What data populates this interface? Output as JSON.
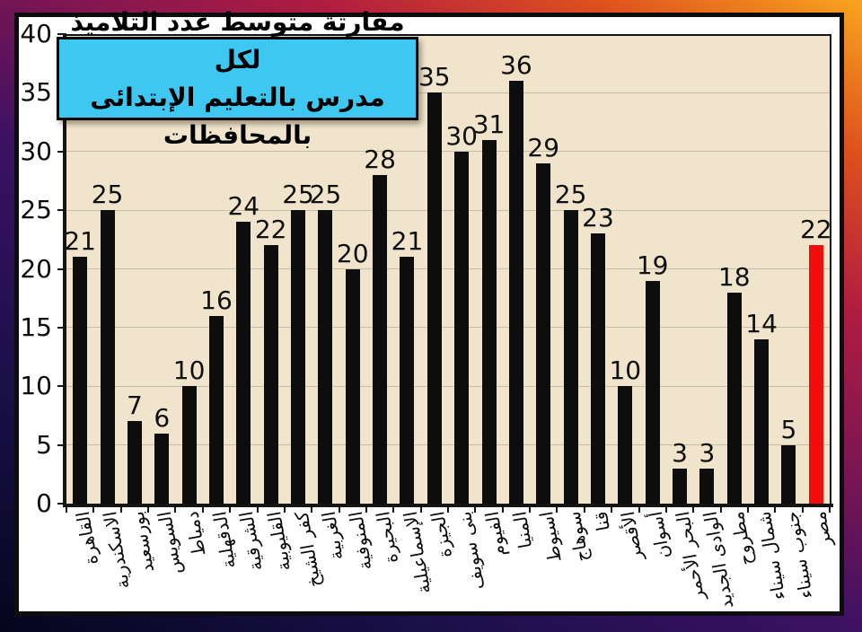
{
  "slide": {
    "background_gradient": [
      "#06051E",
      "#191049",
      "#3D1163",
      "#7C1553",
      "#B01C41",
      "#DE4F1E",
      "#F9A51F"
    ]
  },
  "title": {
    "line1": "مقارتة متوسط عدد التلاميذ لكل",
    "line2": "مدرس بالتعليم الإبتدائى بالمحافظات",
    "box_color": "#3EC7F0",
    "text_color": "#000000"
  },
  "chart_data": {
    "type": "bar",
    "title": "مقارتة متوسط عدد التلاميذ لكل مدرس بالتعليم الإبتدائى بالمحافظات",
    "categories": [
      "القاهرة",
      "الاسكندرية",
      "بورسعيد",
      "السويس",
      "دمياط",
      "الدقهلية",
      "الشرقية",
      "القليوبية",
      "كفر الشيخ",
      "الغربية",
      "المنوفية",
      "البحيرة",
      "الإسماعيلية",
      "الجيزة",
      "بنى سويف",
      "الفيوم",
      "المنيا",
      "اسيوط",
      "سوهاج",
      "قنا",
      "الأقصر",
      "أسوان",
      "البحر الأحمر",
      "الوادى الجديد",
      "مطروح",
      "شمال سيناء",
      "جنوب سيناء",
      "مصر"
    ],
    "values": [
      21,
      25,
      7,
      6,
      10,
      16,
      24,
      22,
      25,
      25,
      20,
      28,
      21,
      35,
      30,
      31,
      36,
      29,
      25,
      23,
      10,
      19,
      3,
      3,
      18,
      14,
      5,
      22
    ],
    "xlabel": "",
    "ylabel": "",
    "ylim": [
      0,
      40
    ],
    "ytick_step": 5,
    "yticks": [
      0,
      5,
      10,
      15,
      20,
      25,
      30,
      35,
      40
    ],
    "grid": true,
    "legend": false,
    "value_labels": true,
    "plot_bg_color": "#F0E5CC",
    "gridline_color": "#C6BDA9",
    "axis_color": "#141414",
    "bar_color": "#0D0D0D",
    "highlight_index": 27,
    "highlight_color": "#F20D0D"
  }
}
